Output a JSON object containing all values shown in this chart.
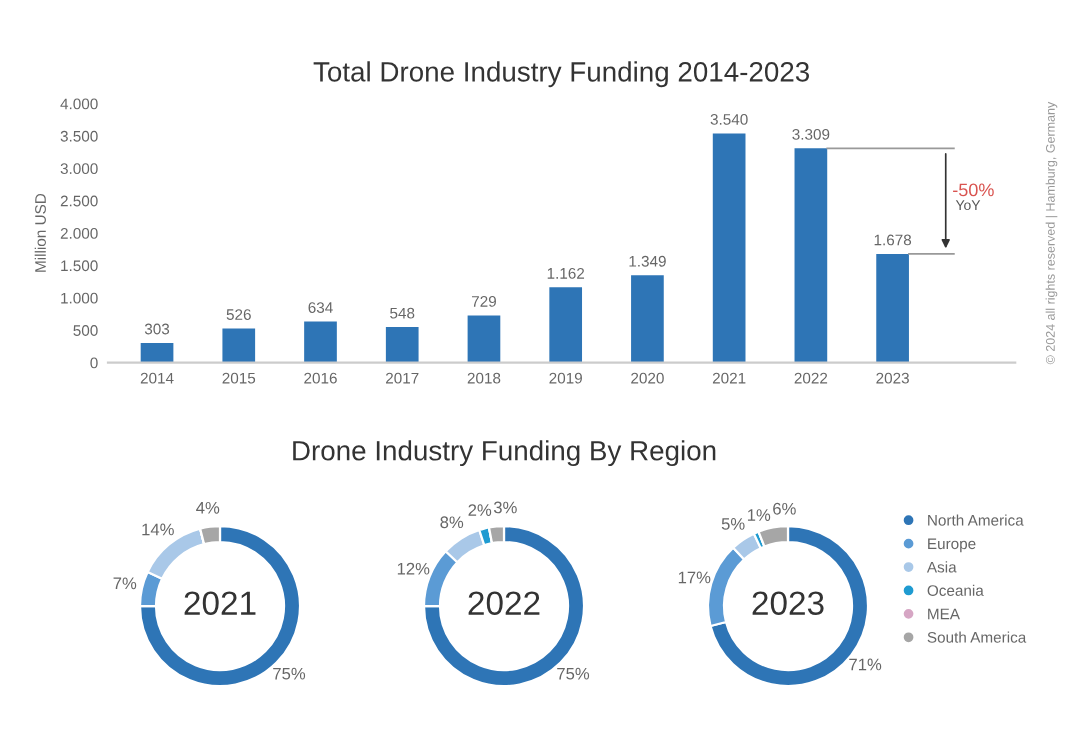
{
  "chart_data": [
    {
      "type": "bar",
      "title": "Total Drone Industry Funding 2014-2023",
      "ylabel": "Million USD",
      "categories": [
        "2014",
        "2015",
        "2016",
        "2017",
        "2018",
        "2019",
        "2020",
        "2021",
        "2022",
        "2023"
      ],
      "values": [
        303,
        526,
        634,
        548,
        729,
        1162,
        1349,
        3540,
        3309,
        1678
      ],
      "value_labels": [
        "303",
        "526",
        "634",
        "548",
        "729",
        "1.162",
        "1.349",
        "3.540",
        "3.309",
        "1.678"
      ],
      "color": "#2e75b6",
      "ylim": [
        0,
        4000
      ],
      "yticks": [
        0,
        500,
        {
          "value": 1000,
          "label": "1.000"
        },
        {
          "value": 1500,
          "label": "1.500"
        },
        {
          "value": 2000,
          "label": "2.000"
        },
        {
          "value": 2500,
          "label": "2.500"
        },
        {
          "value": 3000,
          "label": "3.000"
        },
        {
          "value": 3500,
          "label": "3.500"
        },
        {
          "value": 4000,
          "label": "4.000"
        }
      ],
      "grid": false,
      "annotations": [
        "-50%",
        "YoY",
        "© 2024 all rights reserved | Hamburg, Germany"
      ]
    },
    {
      "type": "donut",
      "title": "Drone Industry Funding By Region",
      "categories": [
        "North America",
        "Europe",
        "Asia",
        "Oceania",
        "MEA",
        "South America"
      ],
      "colors": [
        "#2e75b6",
        "#5b9bd5",
        "#a9c8e8",
        "#1f9bd1",
        "#d6a6c4",
        "#a6a6a6"
      ],
      "series": [
        {
          "name": "2021",
          "values": [
            75,
            7,
            14,
            0,
            0,
            4
          ],
          "value_labels": [
            "75%",
            "7%",
            "14%",
            null,
            null,
            "4%"
          ]
        },
        {
          "name": "2022",
          "values": [
            75,
            12,
            8,
            2,
            0,
            3
          ],
          "value_labels": [
            "75%",
            "12%",
            "8%",
            "2%",
            null,
            "3%"
          ]
        },
        {
          "name": "2023",
          "values": [
            71,
            17,
            5,
            1,
            0,
            6
          ],
          "value_labels": [
            "71%",
            "17%",
            "5%",
            "1%",
            null,
            "6%"
          ]
        }
      ],
      "legend": "right"
    }
  ]
}
